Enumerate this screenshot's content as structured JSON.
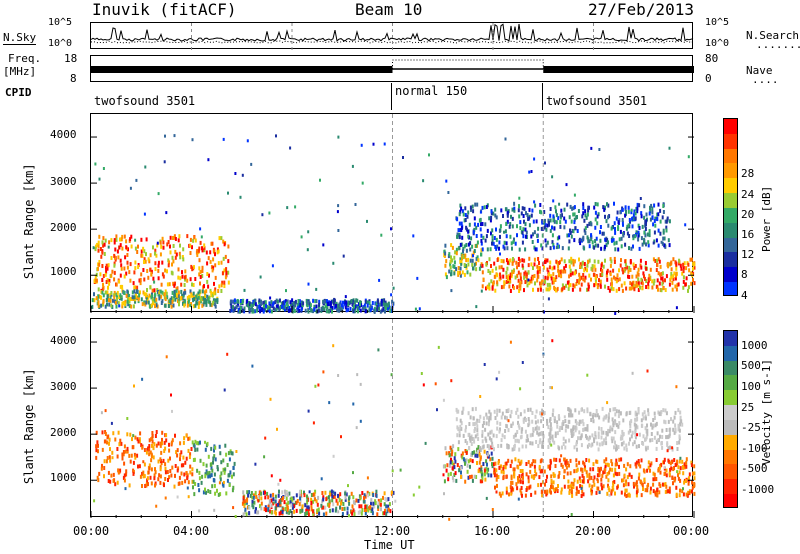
{
  "header": {
    "station": "Inuvik (fitACF)",
    "beam": "Beam 10",
    "date": "27/Feb/2013"
  },
  "noise_panel": {
    "left_label": "N.Sky",
    "ticks_left": [
      "10^5",
      "10^0"
    ],
    "ticks_right": [
      "10^5",
      "10^0"
    ],
    "right_label": "N.Search",
    "right_dash": "........"
  },
  "freq_panel": {
    "left_label_1": "Freq.",
    "left_label_2": "[MHz]",
    "ticks_left": [
      "18",
      "8"
    ],
    "ticks_right": [
      "80",
      "0"
    ],
    "right_label": "Nave",
    "right_dash": "....",
    "cpid_label": "CPID"
  },
  "cpid_segments": [
    {
      "label": "twofsound 3501",
      "start_hour": 0
    },
    {
      "label": "normal 150",
      "start_hour": 12
    },
    {
      "label": "twofsound 3501",
      "start_hour": 18
    }
  ],
  "colorbars": {
    "power": {
      "label": "Power [dB]",
      "ticks": [
        "28",
        "24",
        "20",
        "16",
        "12",
        "8",
        "4"
      ],
      "colors": [
        "#ff0000",
        "#ff3300",
        "#ff7700",
        "#ff9900",
        "#ffcc00",
        "#99cc33",
        "#33aa66",
        "#2a8a70",
        "#336699",
        "#1a2ea0",
        "#0000cc",
        "#0033ff"
      ]
    },
    "velocity": {
      "label": "Velocity [m s-1]",
      "ticks": [
        "1000",
        "500",
        "100",
        "25",
        "-25",
        "-100",
        "-500",
        "-1000"
      ],
      "colors": [
        "#2233aa",
        "#2266aa",
        "#3a8a66",
        "#55aa44",
        "#88cc33",
        "#cccccc",
        "#bbbbbb",
        "#ffaa00",
        "#ff7700",
        "#ff5500",
        "#ff2200",
        "#ff0000"
      ]
    }
  },
  "axes": {
    "ylabel": "Slant Range [km]",
    "yticks": [
      "4000",
      "3000",
      "2000",
      "1000"
    ],
    "xticks": [
      "00:00",
      "04:00",
      "08:00",
      "12:00",
      "16:00",
      "20:00",
      "00:00"
    ],
    "xlabel": "Time UT"
  },
  "chart_data": [
    {
      "type": "heatmap",
      "title": "Power",
      "x_range_hours": [
        0,
        24
      ],
      "ylim": [
        180,
        4500
      ],
      "yticks": [
        1000,
        2000,
        3000,
        4000
      ],
      "colorbar_label": "Power [dB]",
      "colorbar_range": [
        0,
        30
      ],
      "regions": [
        {
          "x0": 0.1,
          "x1": 5.5,
          "y0": 700,
          "y1": 1900,
          "level": "high"
        },
        {
          "x0": 0.0,
          "x1": 5.0,
          "y0": 350,
          "y1": 700,
          "level": "medium"
        },
        {
          "x0": 5.5,
          "x1": 12.0,
          "y0": 250,
          "y1": 500,
          "level": "low"
        },
        {
          "x0": 14.0,
          "x1": 15.5,
          "y0": 1000,
          "y1": 1700,
          "level": "medium"
        },
        {
          "x0": 15.5,
          "x1": 24.0,
          "y0": 700,
          "y1": 1400,
          "level": "high"
        },
        {
          "x0": 14.5,
          "x1": 23.0,
          "y0": 1600,
          "y1": 2600,
          "level": "low"
        }
      ]
    },
    {
      "type": "heatmap",
      "title": "Velocity",
      "x_range_hours": [
        0,
        24
      ],
      "ylim": [
        180,
        4500
      ],
      "yticks": [
        1000,
        2000,
        3000,
        4000
      ],
      "colorbar_label": "Velocity [m s-1]",
      "colorbar_range": [
        -1000,
        1000
      ],
      "regions": [
        {
          "x0": 0.1,
          "x1": 4.0,
          "y0": 900,
          "y1": 2100,
          "sign": "negative"
        },
        {
          "x0": 4.0,
          "x1": 5.7,
          "y0": 700,
          "y1": 1900,
          "sign": "positive"
        },
        {
          "x0": 6.0,
          "x1": 12.0,
          "y0": 300,
          "y1": 800,
          "sign": "mixed"
        },
        {
          "x0": 14.0,
          "x1": 16.0,
          "y0": 1000,
          "y1": 1800,
          "sign": "mixed"
        },
        {
          "x0": 16.0,
          "x1": 24.0,
          "y0": 700,
          "y1": 1500,
          "sign": "negative"
        },
        {
          "x0": 14.5,
          "x1": 23.5,
          "y0": 1700,
          "y1": 2600,
          "sign": "near-zero"
        }
      ]
    }
  ]
}
